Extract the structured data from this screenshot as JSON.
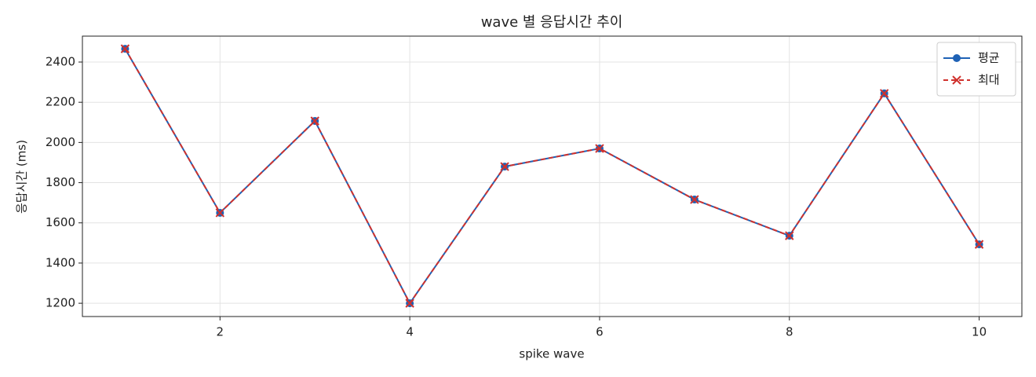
{
  "chart_data": {
    "type": "line",
    "title": "wave 별 응답시간 추이",
    "x_label": "spike wave",
    "y_label": "응답시간 (ms)",
    "x": [
      1,
      2,
      3,
      4,
      5,
      6,
      7,
      8,
      9,
      10
    ],
    "series": [
      {
        "name": "평균",
        "color": "#1f62b5",
        "marker": "o",
        "dash": false,
        "values": [
          2466,
          1650,
          2107,
          1200,
          1880,
          1970,
          1716,
          1536,
          2244,
          1493
        ]
      },
      {
        "name": "최대",
        "color": "#d0312d",
        "marker": "x",
        "dash": true,
        "values": [
          2466,
          1650,
          2107,
          1200,
          1880,
          1970,
          1716,
          1536,
          2244,
          1493
        ]
      }
    ],
    "xlim": [
      0.55,
      10.45
    ],
    "xticks": [
      2,
      4,
      6,
      8,
      10
    ],
    "ylim": [
      1134,
      2529
    ],
    "yticks": [
      1200,
      1400,
      1600,
      1800,
      2000,
      2200,
      2400
    ],
    "grid": true,
    "legend": "upper right"
  }
}
